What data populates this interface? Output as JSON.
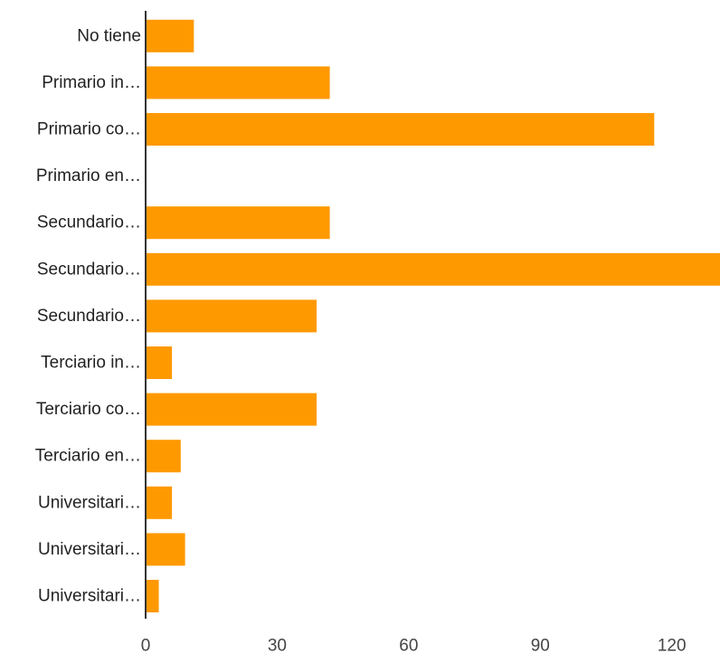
{
  "colors": {
    "bar": "#FF9900",
    "axis": "#333333",
    "label_text": "#222222",
    "tick_text": "#444444"
  },
  "chart_data": {
    "type": "bar",
    "orientation": "horizontal",
    "categories": [
      "No tiene",
      "Primario in…",
      "Primario co…",
      "Primario en…",
      "Secundario…",
      "Secundario…",
      "Secundario…",
      "Terciario in…",
      "Terciario co…",
      "Terciario en…",
      "Universitari…",
      "Universitari…",
      "Universitari…"
    ],
    "values": [
      11,
      42,
      116,
      0,
      42,
      131,
      39,
      6,
      39,
      8,
      6,
      9,
      3
    ],
    "xticks": [
      0,
      30,
      60,
      90,
      120
    ],
    "xlim": [
      0,
      131
    ],
    "grid": false,
    "legend": "none",
    "title": "",
    "xlabel": "",
    "ylabel": ""
  }
}
